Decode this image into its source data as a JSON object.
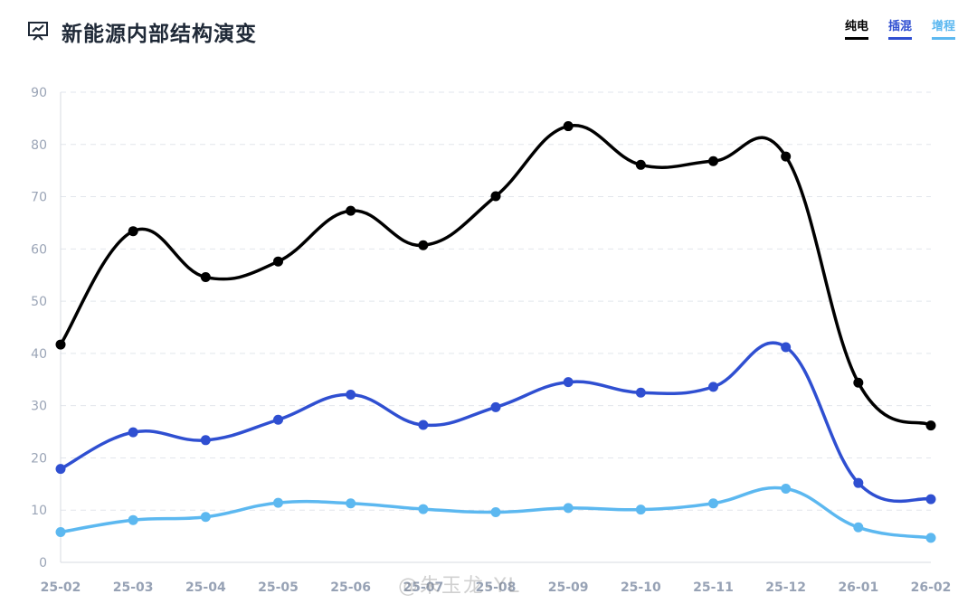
{
  "header": {
    "title": "新能源内部结构演变",
    "icon": "presentation-chart-icon"
  },
  "legend": [
    {
      "label": "纯电",
      "color": "#000000"
    },
    {
      "label": "插混",
      "color": "#2f4fd1"
    },
    {
      "label": "增程",
      "color": "#5cb8f0"
    }
  ],
  "watermark": "@朱玉龙-YL",
  "chart_data": {
    "type": "line",
    "smooth": true,
    "grid": true,
    "legend_position": "top-right",
    "categories": [
      "25-02",
      "25-03",
      "25-04",
      "25-05",
      "25-06",
      "25-07",
      "25-08",
      "25-09",
      "25-10",
      "25-11",
      "25-12",
      "26-01",
      "26-02"
    ],
    "y_ticks": [
      0,
      10,
      20,
      30,
      40,
      50,
      60,
      70,
      80,
      90
    ],
    "ylim": [
      0,
      90
    ],
    "series": [
      {
        "name": "纯电",
        "color": "#000000",
        "values": [
          41.7,
          63.4,
          54.6,
          57.6,
          67.3,
          60.7,
          70.1,
          83.5,
          76.1,
          76.8,
          77.7,
          34.4,
          26.2
        ]
      },
      {
        "name": "插混",
        "color": "#2f4fd1",
        "values": [
          17.9,
          24.9,
          23.4,
          27.3,
          32.1,
          26.3,
          29.7,
          34.5,
          32.5,
          33.6,
          41.2,
          15.2,
          12.1
        ]
      },
      {
        "name": "增程",
        "color": "#5cb8f0",
        "values": [
          5.8,
          8.1,
          8.7,
          11.4,
          11.3,
          10.2,
          9.6,
          10.4,
          10.1,
          11.3,
          14.1,
          6.7,
          4.7
        ]
      }
    ]
  }
}
